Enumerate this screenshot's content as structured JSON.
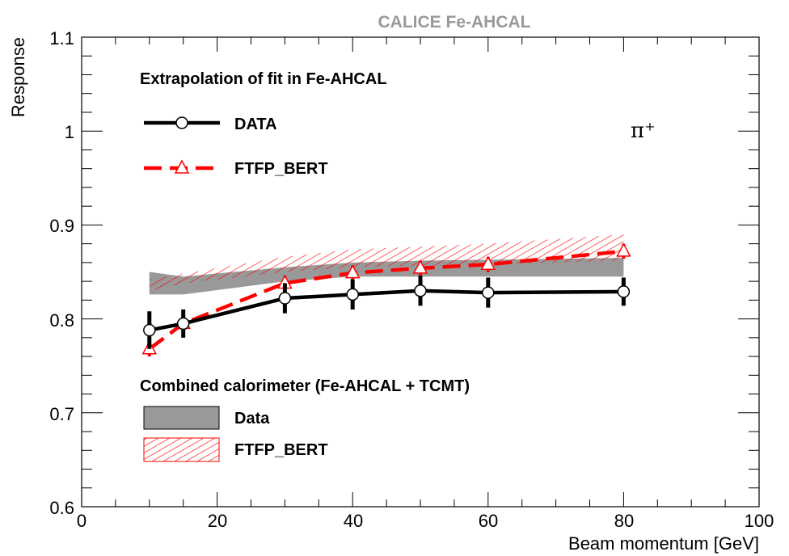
{
  "chart_data": {
    "type": "line",
    "title": "CALICE Fe-AHCAL",
    "xlabel": "Beam momentum [GeV]",
    "ylabel": "Response",
    "xlim": [
      0,
      100
    ],
    "ylim": [
      0.6,
      1.1
    ],
    "xticks": [
      0,
      20,
      40,
      60,
      80,
      100
    ],
    "yticks": [
      0.6,
      0.7,
      0.8,
      0.9,
      1.0,
      1.1
    ],
    "xtick_labels": [
      "0",
      "20",
      "40",
      "60",
      "80",
      "100"
    ],
    "ytick_labels": [
      "0.6",
      "0.7",
      "0.8",
      "0.9",
      "1",
      "1.1"
    ],
    "particle_label": "π⁺",
    "legend_top": {
      "title": "Extrapolation of fit in Fe-AHCAL",
      "entries": [
        "DATA",
        "FTFP_BERT"
      ]
    },
    "legend_bottom": {
      "title": "Combined calorimeter (Fe-AHCAL + TCMT)",
      "entries": [
        "Data",
        "FTFP_BERT"
      ]
    },
    "series": [
      {
        "name": "DATA",
        "color": "#000000",
        "marker": "open-circle",
        "x": [
          10,
          15,
          30,
          40,
          50,
          60,
          80
        ],
        "y": [
          0.788,
          0.795,
          0.822,
          0.826,
          0.83,
          0.828,
          0.829
        ],
        "err": [
          0.02,
          0.015,
          0.016,
          0.016,
          0.016,
          0.016,
          0.015
        ]
      },
      {
        "name": "FTFP_BERT",
        "color": "#ff0000",
        "marker": "open-triangle",
        "x": [
          10,
          15,
          30,
          40,
          50,
          60,
          80
        ],
        "y": [
          0.768,
          0.795,
          0.838,
          0.849,
          0.854,
          0.858,
          0.872
        ],
        "err": [
          0.008,
          0.007,
          0.008,
          0.008,
          0.008,
          0.008,
          0.008
        ]
      }
    ],
    "bands": [
      {
        "name": "Data",
        "fill": "#999999",
        "style": "solid",
        "x": [
          10,
          15,
          30,
          40,
          50,
          60,
          80
        ],
        "lower": [
          0.826,
          0.826,
          0.84,
          0.845,
          0.845,
          0.845,
          0.845
        ],
        "upper": [
          0.85,
          0.845,
          0.855,
          0.86,
          0.862,
          0.863,
          0.865
        ]
      },
      {
        "name": "FTFP_BERT",
        "fill": "#ff0000",
        "style": "hatched",
        "x": [
          10,
          15,
          30,
          40,
          50,
          60,
          80
        ],
        "lower": [
          0.83,
          0.838,
          0.85,
          0.855,
          0.857,
          0.858,
          0.862
        ],
        "upper": [
          0.842,
          0.848,
          0.866,
          0.874,
          0.877,
          0.88,
          0.89
        ]
      }
    ]
  }
}
